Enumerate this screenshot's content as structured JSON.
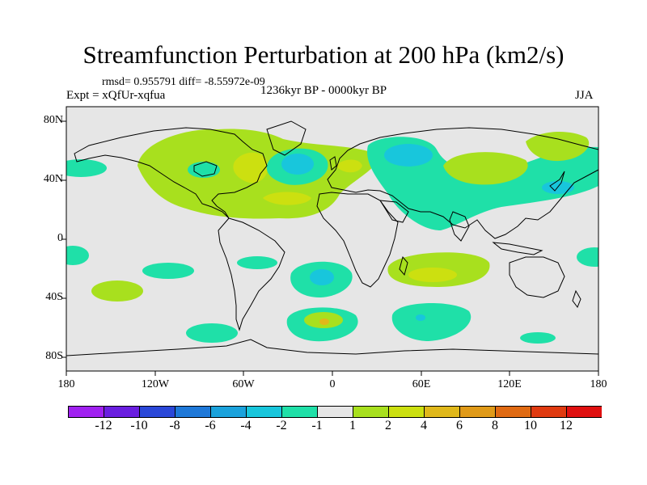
{
  "title": "Streamfunction Perturbation at 200 hPa (km2/s)",
  "stats_line": "rmsd= 0.955791 diff= -8.55972e-09",
  "experiment_label": "Expt = xQfUr-xqfua",
  "period_label": "1236kyr BP - 0000kyr BP",
  "season_label": "JJA",
  "y_ticks": [
    "80N",
    "40N",
    "0",
    "40S",
    "80S"
  ],
  "x_ticks": [
    "180",
    "120W",
    "60W",
    "0",
    "60E",
    "120E",
    "180"
  ],
  "colorbar": {
    "labels": [
      "-12",
      "-10",
      "-8",
      "-6",
      "-4",
      "-2",
      "-1",
      "1",
      "2",
      "4",
      "6",
      "8",
      "10",
      "12"
    ],
    "colors": [
      "#a020f0",
      "#6a1ee0",
      "#2a47d8",
      "#1e78d8",
      "#1aa2dc",
      "#18c6dc",
      "#1fe0a8",
      "#e6e6e6",
      "#a8e01e",
      "#cce010",
      "#e0b81a",
      "#e09a18",
      "#e06a12",
      "#e03a10",
      "#e01010"
    ]
  },
  "colors": {
    "neutral": "#e6e6e6",
    "pos_light": "#a8e01e",
    "pos_mid": "#cce010",
    "pos_high": "#e0b81a",
    "neg_light": "#1fe0a8",
    "neg_mid": "#18c6dc",
    "neg_high": "#1aa2dc"
  }
}
